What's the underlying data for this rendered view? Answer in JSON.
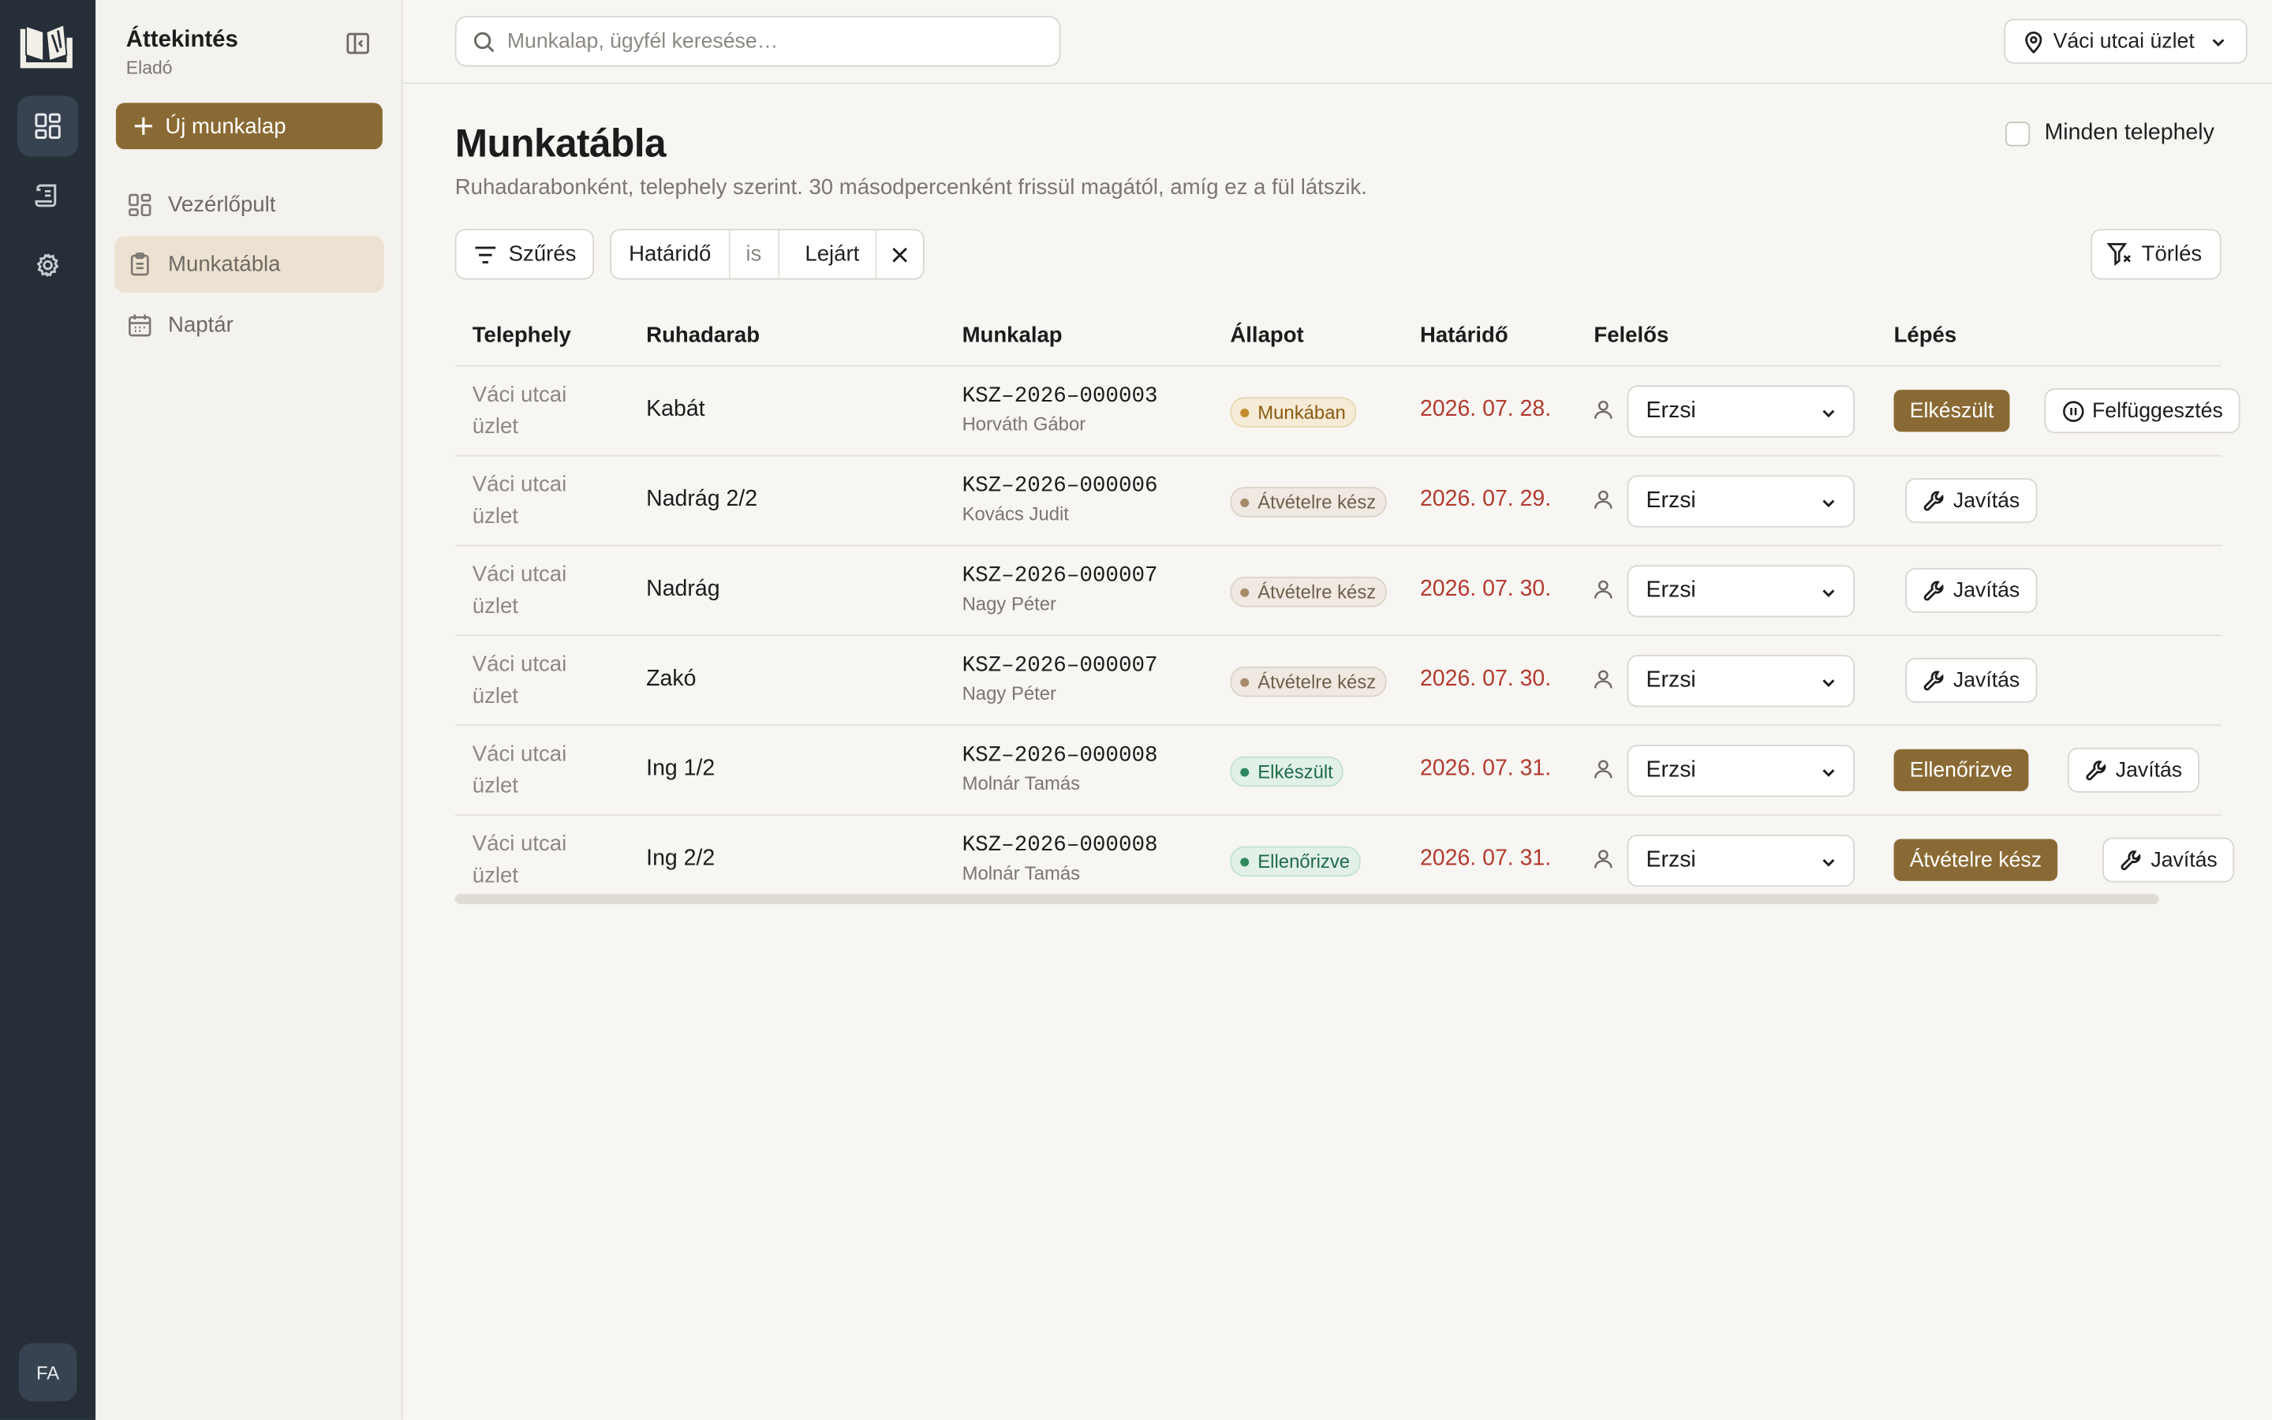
{
  "sidebar": {
    "title": "Áttekintés",
    "role": "Eladó",
    "new_button": "Új munkalap",
    "items": [
      {
        "label": "Vezérlőpult",
        "icon": "dashboard-icon"
      },
      {
        "label": "Munkatábla",
        "icon": "clipboard-icon",
        "active": true
      },
      {
        "label": "Naptár",
        "icon": "calendar-icon"
      }
    ],
    "avatar": "FA"
  },
  "topbar": {
    "search_placeholder": "Munkalap, ügyfél keresése…",
    "location": "Váci utcai üzlet"
  },
  "main": {
    "title": "Munkatábla",
    "description": "Ruhadarabonként, telephely szerint. 30 másodpercenként frissül magától, amíg ez a fül látszik.",
    "all_sites_label": "Minden telephely",
    "filter_button": "Szűrés",
    "filter_chip": {
      "field": "Határidő",
      "operator": "is",
      "value": "Lejárt"
    },
    "clear_button": "Törlés"
  },
  "table": {
    "columns": [
      "Telephely",
      "Ruhadarab",
      "Munkalap",
      "Állapot",
      "Határidő",
      "Felelős",
      "Lépés"
    ],
    "rows": [
      {
        "site": "Váci utcai üzlet",
        "item": "Kabát",
        "worksheet": "KSZ–2026–000003",
        "customer": "Horváth Gábor",
        "status": "Munkában",
        "status_kind": "working",
        "deadline": "2026. 07. 28.",
        "assignee": "Erzsi",
        "actions": [
          {
            "label": "Elkészült",
            "kind": "primary"
          },
          {
            "label": "Felfüggesztés",
            "kind": "outline",
            "icon": "pause-icon"
          }
        ]
      },
      {
        "site": "Váci utcai üzlet",
        "item": "Nadrág 2/2",
        "worksheet": "KSZ–2026–000006",
        "customer": "Kovács Judit",
        "status": "Átvételre kész",
        "status_kind": "ready",
        "deadline": "2026. 07. 29.",
        "assignee": "Erzsi",
        "actions": [
          {
            "label": "Javítás",
            "kind": "outline",
            "icon": "wrench-icon"
          }
        ]
      },
      {
        "site": "Váci utcai üzlet",
        "item": "Nadrág",
        "worksheet": "KSZ–2026–000007",
        "customer": "Nagy Péter",
        "status": "Átvételre kész",
        "status_kind": "ready",
        "deadline": "2026. 07. 30.",
        "assignee": "Erzsi",
        "actions": [
          {
            "label": "Javítás",
            "kind": "outline",
            "icon": "wrench-icon"
          }
        ]
      },
      {
        "site": "Váci utcai üzlet",
        "item": "Zakó",
        "worksheet": "KSZ–2026–000007",
        "customer": "Nagy Péter",
        "status": "Átvételre kész",
        "status_kind": "ready",
        "deadline": "2026. 07. 30.",
        "assignee": "Erzsi",
        "actions": [
          {
            "label": "Javítás",
            "kind": "outline",
            "icon": "wrench-icon"
          }
        ]
      },
      {
        "site": "Váci utcai üzlet",
        "item": "Ing 1/2",
        "worksheet": "KSZ–2026–000008",
        "customer": "Molnár Tamás",
        "status": "Elkészült",
        "status_kind": "done",
        "deadline": "2026. 07. 31.",
        "assignee": "Erzsi",
        "actions": [
          {
            "label": "Ellenőrizve",
            "kind": "primary"
          },
          {
            "label": "Javítás",
            "kind": "outline",
            "icon": "wrench-icon"
          }
        ]
      },
      {
        "site": "Váci utcai üzlet",
        "item": "Ing 2/2",
        "worksheet": "KSZ–2026–000008",
        "customer": "Molnár Tamás",
        "status": "Ellenőrizve",
        "status_kind": "done",
        "deadline": "2026. 07. 31.",
        "assignee": "Erzsi",
        "actions": [
          {
            "label": "Átvételre kész",
            "kind": "primary"
          },
          {
            "label": "Javítás",
            "kind": "outline",
            "icon": "wrench-icon"
          }
        ]
      }
    ]
  },
  "colors": {
    "brand": "#8a6a34",
    "rail": "#262f38",
    "overdue": "#b33a2e",
    "status_working": "#b07a1c",
    "status_ready": "#8a7560",
    "status_done": "#2e8a5e"
  }
}
